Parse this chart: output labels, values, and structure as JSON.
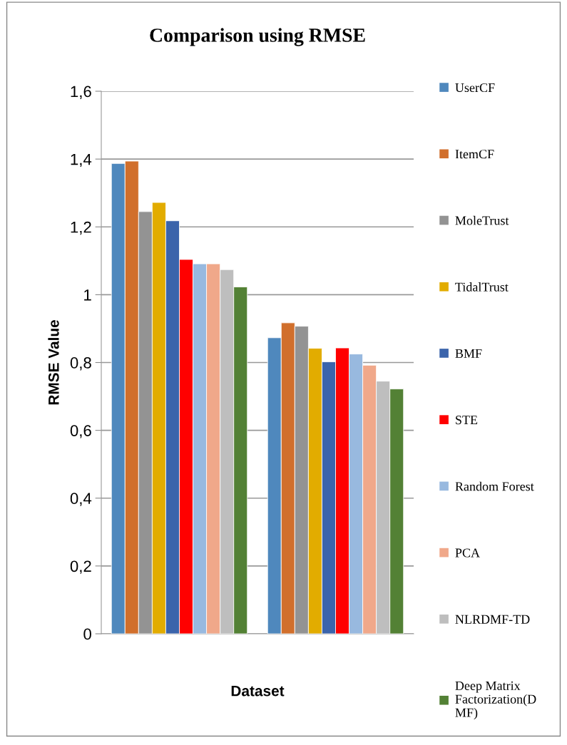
{
  "chart_data": {
    "type": "bar",
    "title": "Comparison using RMSE",
    "xlabel": "Dataset",
    "ylabel": "RMSE Value",
    "categories": [
      null,
      null
    ],
    "series": [
      {
        "name": "UserCF",
        "color": "#4f88bd",
        "values": [
          1.387,
          0.873
        ]
      },
      {
        "name": "ItemCF",
        "color": "#d16f2c",
        "values": [
          1.394,
          0.917
        ]
      },
      {
        "name": "MoleTrust",
        "color": "#939393",
        "values": [
          1.245,
          0.907
        ]
      },
      {
        "name": "TidalTrust",
        "color": "#e2ac00",
        "values": [
          1.272,
          0.842
        ]
      },
      {
        "name": "BMF",
        "color": "#3b64ab",
        "values": [
          1.218,
          0.802
        ]
      },
      {
        "name": "STE",
        "color": "#ff0000",
        "values": [
          1.104,
          0.843
        ]
      },
      {
        "name": "Random Forest",
        "color": "#98b9df",
        "values": [
          1.091,
          0.825
        ]
      },
      {
        "name": "PCA",
        "color": "#f0a88a",
        "values": [
          1.091,
          0.792
        ]
      },
      {
        "name": "NLRDMF-TD",
        "color": "#bebebe",
        "values": [
          1.074,
          0.745
        ]
      },
      {
        "name": "Deep Matrix\nFactorization(D\nMF)",
        "color": "#538135",
        "values": [
          1.023,
          0.722
        ]
      }
    ],
    "ylim": [
      0,
      1.6
    ],
    "yticks": [
      0,
      {
        "value": 0.2,
        "label": "0,2"
      },
      {
        "value": 0.4,
        "label": "0,4"
      },
      {
        "value": 0.6,
        "label": "0,6"
      },
      {
        "value": 0.8,
        "label": "0,8"
      },
      1,
      {
        "value": 1.2,
        "label": "1,2"
      },
      {
        "value": 1.4,
        "label": "1,4"
      },
      {
        "value": 1.6,
        "label": "1,6"
      }
    ],
    "grid": "y",
    "legend": "right"
  }
}
